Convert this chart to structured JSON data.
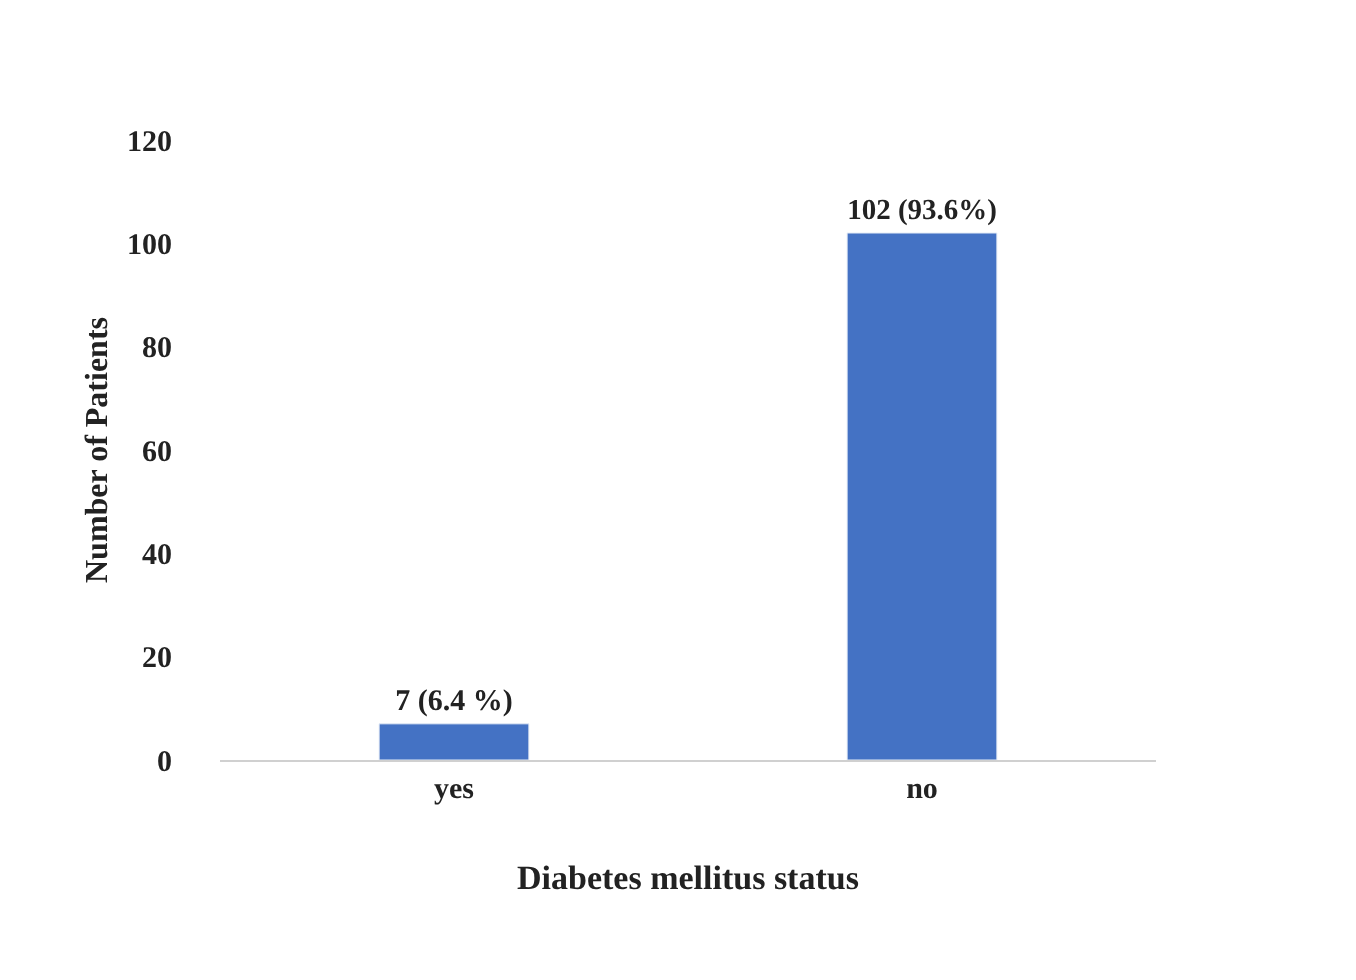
{
  "chart_data": {
    "type": "bar",
    "xlabel": "Diabetes mellitus status",
    "ylabel": "Number of Patients",
    "categories": [
      "yes",
      "no"
    ],
    "values": [
      7,
      102
    ],
    "color": "#4472c4",
    "value_labels": [
      "7 (6.4 %)",
      "102 (93.6%)"
    ],
    "ylim": [
      0,
      120
    ],
    "yticks": [
      0,
      20,
      40,
      60,
      80,
      100,
      120
    ]
  }
}
